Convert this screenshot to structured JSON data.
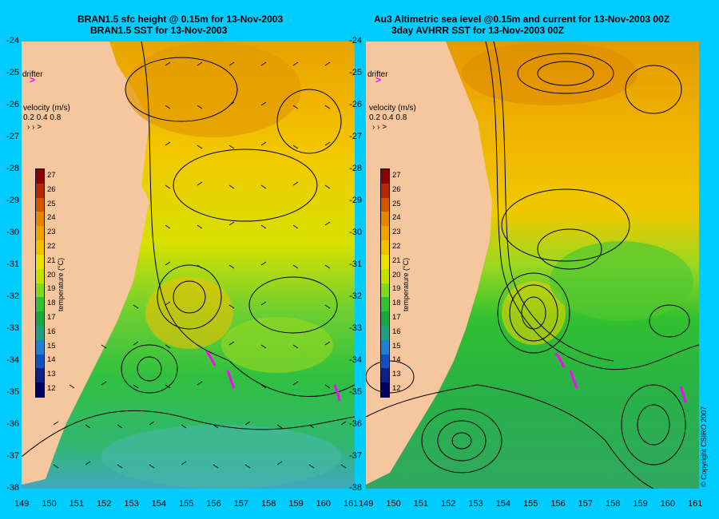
{
  "left_panel": {
    "title_line1": "BRAN1.5 sfc height @ 0.15m for 13-Nov-2003",
    "title_line2": "BRAN1.5 SST for 13-Nov-2003"
  },
  "right_panel": {
    "title_line1": "Au3 Altimetric sea level  @0.15m and current for 13-Nov-2003 00Z",
    "title_line2": "3day AVHRR SST for 13-Nov-2003 00Z"
  },
  "legend": {
    "drifter_label": "drifter",
    "velocity_label": "velocity (m/s)",
    "velocity_values": "0.2 0.4 0.8",
    "velocity_arrows": "› › >"
  },
  "colorbar": {
    "title": "temperature (°C)",
    "labels": [
      "27",
      "26",
      "25",
      "24",
      "23",
      "22",
      "21",
      "20",
      "19",
      "18",
      "17",
      "16",
      "15",
      "14",
      "13",
      "12"
    ],
    "colors": [
      "#8b0000",
      "#b22a00",
      "#d45500",
      "#e88500",
      "#f0a000",
      "#f3c000",
      "#f0e000",
      "#c8e000",
      "#80d820",
      "#30c030",
      "#18a838",
      "#20a080",
      "#2080d0",
      "#1050c0",
      "#102080",
      "#000060"
    ]
  },
  "y_axis": [
    "-24",
    "-25",
    "-26",
    "-27",
    "-28",
    "-29",
    "-30",
    "-31",
    "-32",
    "-33",
    "-34",
    "-35",
    "-36",
    "-37",
    "-38"
  ],
  "x_axis_left": [
    "149",
    "150",
    "151",
    "152",
    "153",
    "154",
    "155",
    "156",
    "157",
    "158",
    "159",
    "160",
    "161"
  ],
  "x_axis_right": [
    "149",
    "150",
    "151",
    "152",
    "153",
    "154",
    "155",
    "156",
    "157",
    "158",
    "159",
    "160",
    "161"
  ],
  "copyright": "© Copyright CSIRO 2007"
}
